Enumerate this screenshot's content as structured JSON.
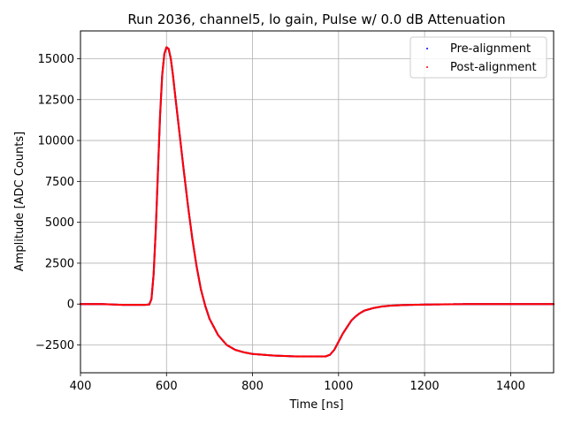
{
  "chart_data": {
    "type": "scatter",
    "title": "Run 2036, channel5, lo gain, Pulse w/ 0.0 dB Attenuation",
    "xlabel": "Time [ns]",
    "ylabel": "Amplitude [ADC Counts]",
    "xlim": [
      400,
      1500
    ],
    "ylim": [
      -4200,
      16700
    ],
    "xticks": [
      400,
      600,
      800,
      1000,
      1200,
      1400
    ],
    "yticks": [
      -2500,
      0,
      2500,
      5000,
      7500,
      10000,
      12500,
      15000
    ],
    "xtick_labels": [
      "400",
      "600",
      "800",
      "1000",
      "1200",
      "1400"
    ],
    "ytick_labels": [
      "−2500",
      "0",
      "2500",
      "5000",
      "7500",
      "10000",
      "12500",
      "15000"
    ],
    "grid": true,
    "legend_position": "top-right",
    "series": [
      {
        "name": "Pre-alignment",
        "color": "#0000ff",
        "x": [
          400,
          450,
          500,
          550,
          560,
          565,
          570,
          575,
          580,
          585,
          590,
          595,
          600,
          605,
          610,
          615,
          620,
          630,
          640,
          650,
          660,
          670,
          680,
          690,
          700,
          720,
          740,
          760,
          780,
          800,
          850,
          900,
          950,
          970,
          980,
          990,
          1000,
          1010,
          1020,
          1030,
          1040,
          1050,
          1060,
          1080,
          1100,
          1120,
          1150,
          1200,
          1300,
          1400,
          1500
        ],
        "y": [
          0,
          0,
          -50,
          -50,
          -20,
          300,
          1800,
          4500,
          8000,
          11500,
          14000,
          15300,
          15700,
          15600,
          15000,
          14000,
          12800,
          10500,
          8200,
          6000,
          4000,
          2300,
          900,
          -100,
          -900,
          -1900,
          -2500,
          -2800,
          -2950,
          -3050,
          -3150,
          -3200,
          -3200,
          -3200,
          -3100,
          -2800,
          -2300,
          -1800,
          -1400,
          -1000,
          -750,
          -550,
          -400,
          -250,
          -150,
          -100,
          -60,
          -30,
          0,
          0,
          0
        ]
      },
      {
        "name": "Post-alignment",
        "color": "#ff0000",
        "x": [
          400,
          450,
          500,
          550,
          560,
          565,
          570,
          575,
          580,
          585,
          590,
          595,
          600,
          605,
          610,
          615,
          620,
          630,
          640,
          650,
          660,
          670,
          680,
          690,
          700,
          720,
          740,
          760,
          780,
          800,
          850,
          900,
          950,
          970,
          980,
          990,
          1000,
          1010,
          1020,
          1030,
          1040,
          1050,
          1060,
          1080,
          1100,
          1120,
          1150,
          1200,
          1300,
          1400,
          1500
        ],
        "y": [
          0,
          0,
          -50,
          -50,
          -20,
          300,
          1800,
          4500,
          8000,
          11500,
          14000,
          15300,
          15700,
          15600,
          15000,
          14000,
          12800,
          10500,
          8200,
          6000,
          4000,
          2300,
          900,
          -100,
          -900,
          -1900,
          -2500,
          -2800,
          -2950,
          -3050,
          -3150,
          -3200,
          -3200,
          -3200,
          -3100,
          -2800,
          -2300,
          -1800,
          -1400,
          -1000,
          -750,
          -550,
          -400,
          -250,
          -150,
          -100,
          -60,
          -30,
          0,
          0,
          0
        ]
      }
    ]
  }
}
